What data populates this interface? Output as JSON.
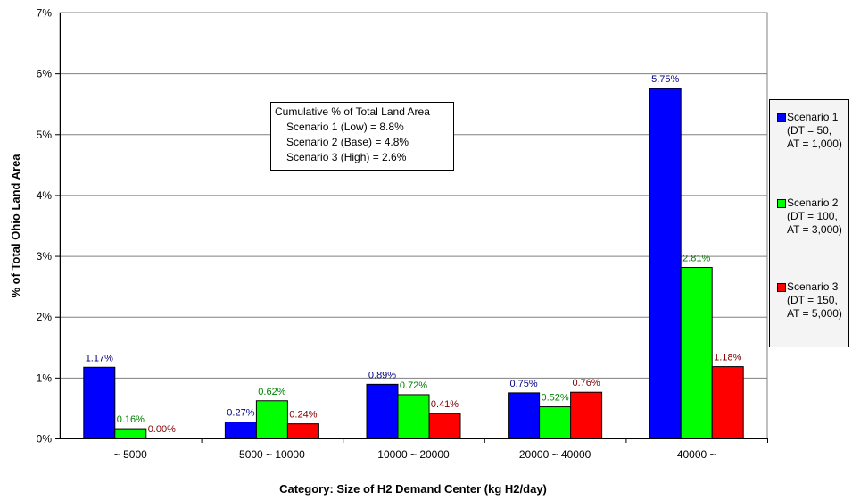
{
  "chart_data": {
    "type": "bar",
    "xlabel": "Category: Size of H2 Demand Center (kg H2/day)",
    "ylabel": "% of Total Ohio Land Area",
    "ylim": [
      0,
      7
    ],
    "yticks": [
      "0%",
      "1%",
      "2%",
      "3%",
      "4%",
      "5%",
      "6%",
      "7%"
    ],
    "grid": "horizontal",
    "categories": [
      "~ 5000",
      "5000 ~ 10000",
      "10000 ~ 20000",
      "20000 ~ 40000",
      "40000 ~"
    ],
    "series": [
      {
        "name": "Scenario 1\n(DT = 50,\nAT = 1,000)",
        "color": "#0000ff",
        "label_color": "#000080",
        "values": [
          1.17,
          0.27,
          0.89,
          0.75,
          5.75
        ],
        "labels": [
          "1.17%",
          "0.27%",
          "0.89%",
          "0.75%",
          "5.75%"
        ]
      },
      {
        "name": "Scenario 2\n(DT = 100,\nAT = 3,000)",
        "color": "#00ff00",
        "label_color": "#008000",
        "values": [
          0.16,
          0.62,
          0.72,
          0.52,
          2.81
        ],
        "labels": [
          "0.16%",
          "0.62%",
          "0.72%",
          "0.52%",
          "2.81%"
        ]
      },
      {
        "name": "Scenario 3\n(DT = 150,\nAT = 5,000)",
        "color": "#ff0000",
        "label_color": "#800000",
        "values": [
          0.0,
          0.24,
          0.41,
          0.76,
          1.18
        ],
        "labels": [
          "0.00%",
          "0.24%",
          "0.41%",
          "0.76%",
          "1.18%"
        ]
      }
    ],
    "legend_placement": "right",
    "annotation": {
      "title": "Cumulative % of Total Land Area",
      "lines": [
        "Scenario 1 (Low) = 8.8%",
        "Scenario 2 (Base) = 4.8%",
        "Scenario 3 (High) = 2.6%"
      ]
    }
  }
}
